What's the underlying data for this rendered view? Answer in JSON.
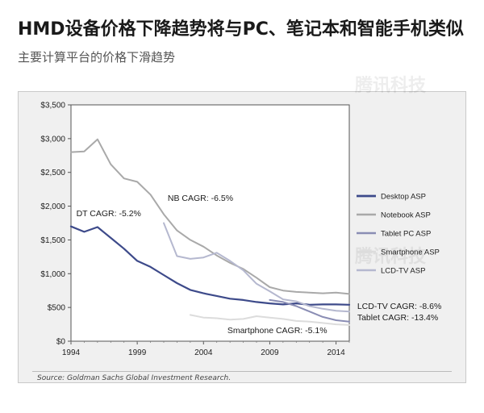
{
  "header": {
    "title": "HMD设备价格下降趋势将与PC、笔记本和智能手机类似",
    "subtitle": "主要计算平台的价格下滑趋势"
  },
  "watermark": "腾讯科技",
  "source": "Source: Goldman Sachs Global Investment Research.",
  "chart_data": {
    "type": "line",
    "title": "",
    "xlabel": "",
    "ylabel": "",
    "xlim": [
      1994,
      2015
    ],
    "ylim": [
      0,
      3500
    ],
    "x_ticks": [
      1994,
      1999,
      2004,
      2009,
      2014
    ],
    "y_ticks": [
      {
        "value": 0,
        "label": "$0"
      },
      {
        "value": 500,
        "label": "$500"
      },
      {
        "value": 1000,
        "label": "$1,000"
      },
      {
        "value": 1500,
        "label": "$1,500"
      },
      {
        "value": 2000,
        "label": "$2,000"
      },
      {
        "value": 2500,
        "label": "$2,500"
      },
      {
        "value": 3000,
        "label": "$3,000"
      },
      {
        "value": 3500,
        "label": "$3,500"
      }
    ],
    "legend_position": "right",
    "series": [
      {
        "name": "Desktop ASP",
        "color": "#3d4a8a",
        "width": 2.2,
        "x": [
          1994,
          1995,
          1996,
          1997,
          1998,
          1999,
          2000,
          2001,
          2002,
          2003,
          2004,
          2005,
          2006,
          2007,
          2008,
          2009,
          2010,
          2011,
          2012,
          2013,
          2014,
          2015
        ],
        "y": [
          1700,
          1620,
          1690,
          1530,
          1370,
          1190,
          1100,
          980,
          860,
          760,
          710,
          670,
          630,
          610,
          580,
          560,
          545,
          560,
          540,
          545,
          545,
          540
        ]
      },
      {
        "name": "Notebook ASP",
        "color": "#a9a9a9",
        "width": 2,
        "x": [
          1994,
          1995,
          1996,
          1997,
          1998,
          1999,
          2000,
          2001,
          2002,
          2003,
          2004,
          2005,
          2006,
          2007,
          2008,
          2009,
          2010,
          2011,
          2012,
          2013,
          2014,
          2015
        ],
        "y": [
          2800,
          2810,
          2990,
          2620,
          2410,
          2360,
          2170,
          1880,
          1640,
          1500,
          1400,
          1270,
          1160,
          1070,
          940,
          800,
          750,
          730,
          720,
          710,
          720,
          700
        ]
      },
      {
        "name": "Tablet PC ASP",
        "color": "#8a8db4",
        "width": 2,
        "x": [
          2009,
          2010,
          2011,
          2012,
          2013,
          2014,
          2015
        ],
        "y": [
          610,
          580,
          520,
          440,
          360,
          310,
          290
        ]
      },
      {
        "name": "Smartphone ASP",
        "color": "#dcdcdc",
        "width": 2,
        "x": [
          2003,
          2004,
          2005,
          2006,
          2007,
          2008,
          2009,
          2010,
          2011,
          2012,
          2013,
          2014,
          2015
        ],
        "y": [
          390,
          350,
          340,
          320,
          330,
          370,
          350,
          330,
          300,
          290,
          270,
          250,
          240
        ]
      },
      {
        "name": "LCD-TV ASP",
        "color": "#b5b8cf",
        "width": 2,
        "x": [
          2001,
          2002,
          2003,
          2004,
          2005,
          2006,
          2007,
          2008,
          2009,
          2010,
          2011,
          2012,
          2013,
          2014,
          2015
        ],
        "y": [
          1750,
          1260,
          1220,
          1240,
          1310,
          1190,
          1050,
          850,
          740,
          620,
          590,
          520,
          480,
          450,
          440
        ]
      }
    ],
    "annotations": [
      {
        "text": "NB CAGR: -6.5%",
        "x": 2001.3,
        "y": 2080,
        "bold": false
      },
      {
        "text": "DT CAGR: -5.2%",
        "x": 1994.4,
        "y": 1850,
        "bold": false
      },
      {
        "text": "Smartphone CAGR: -5.1%",
        "x": 2005.8,
        "y": 120,
        "bold": false
      },
      {
        "text": "LCD-TV CAGR: -8.6%",
        "x": 2015.6,
        "y": 480,
        "bold": false
      },
      {
        "text": "Tablet CAGR: -13.4%",
        "x": 2015.6,
        "y": 310,
        "bold": false
      }
    ]
  }
}
